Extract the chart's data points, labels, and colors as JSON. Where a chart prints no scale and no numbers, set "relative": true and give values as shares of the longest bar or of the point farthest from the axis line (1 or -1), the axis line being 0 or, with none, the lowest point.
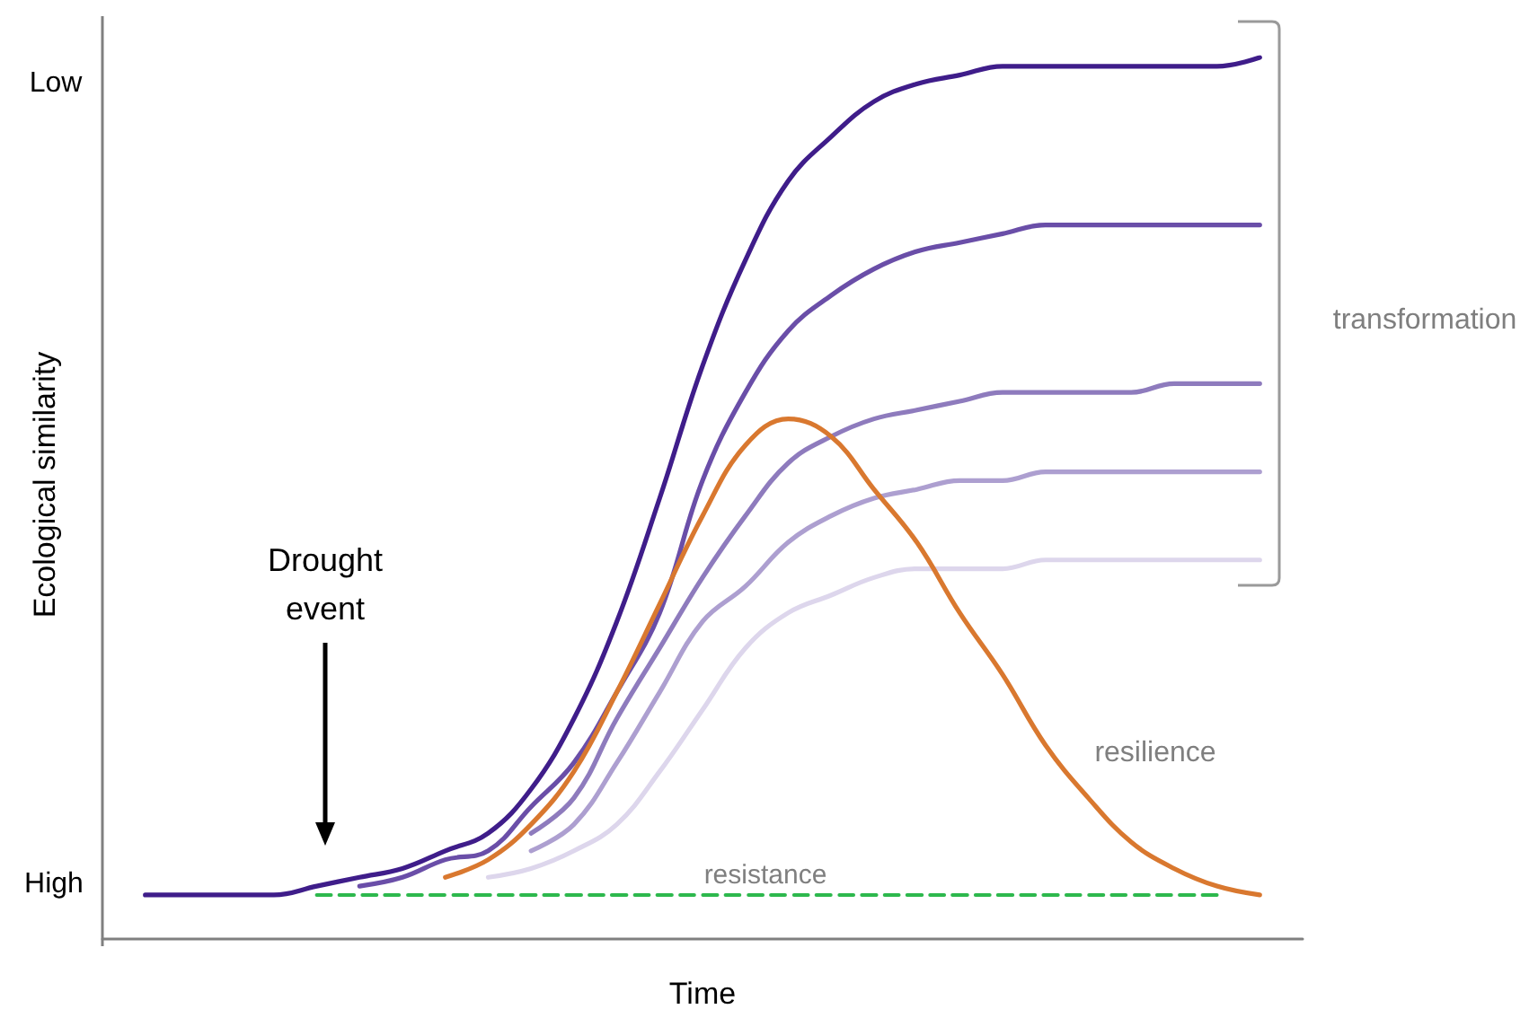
{
  "chart_data": {
    "type": "line",
    "xlabel": "Time",
    "ylabel": "Ecological similarity",
    "relative": true,
    "categories": [
      null,
      null,
      null,
      null,
      null,
      null,
      null,
      null,
      null,
      null,
      null,
      null,
      null,
      null,
      null,
      null,
      null,
      null,
      null,
      null,
      null,
      null,
      null,
      null,
      null,
      null,
      null,
      null,
      null
    ],
    "grid": false,
    "marker": "none",
    "series": [
      {
        "color": "#ddd6ec",
        "values": [
          null,
          null,
          null,
          null,
          null,
          null,
          null,
          null,
          null,
          0.07,
          0.08,
          0.1,
          0.13,
          0.19,
          0.26,
          0.33,
          0.37,
          0.39,
          0.41,
          0.42,
          0.42,
          0.42,
          0.43,
          0.43,
          0.43,
          0.43,
          0.43,
          0.43,
          null
        ]
      },
      {
        "color": "#ad9fd0",
        "values": [
          null,
          null,
          null,
          null,
          null,
          null,
          null,
          null,
          null,
          null,
          0.1,
          0.13,
          0.2,
          0.28,
          0.36,
          0.4,
          0.45,
          0.48,
          0.5,
          0.51,
          0.52,
          0.52,
          0.53,
          0.53,
          0.53,
          0.53,
          0.53,
          0.53,
          null
        ]
      },
      {
        "color": "#8e7bbd",
        "values": [
          null,
          null,
          null,
          null,
          null,
          null,
          null,
          null,
          null,
          null,
          0.12,
          0.16,
          0.25,
          0.33,
          0.41,
          0.48,
          0.54,
          0.57,
          0.59,
          0.6,
          0.61,
          0.62,
          0.62,
          0.62,
          0.62,
          0.63,
          0.63,
          0.63,
          null
        ]
      },
      {
        "color": "#6a4ea8",
        "values": [
          null,
          null,
          null,
          null,
          null,
          null,
          0.06,
          0.07,
          0.09,
          0.1,
          0.15,
          0.2,
          0.28,
          0.37,
          0.52,
          0.62,
          0.69,
          0.73,
          0.76,
          0.78,
          0.79,
          0.8,
          0.81,
          0.81,
          0.81,
          0.81,
          0.81,
          0.81,
          null
        ]
      },
      {
        "color": "#3f1d8a",
        "values": [
          null,
          0.05,
          0.05,
          0.05,
          0.05,
          0.06,
          0.07,
          0.08,
          0.1,
          0.12,
          0.17,
          0.25,
          0.36,
          0.5,
          0.65,
          0.77,
          0.86,
          0.91,
          0.95,
          0.97,
          0.98,
          0.99,
          0.99,
          0.99,
          0.99,
          0.99,
          0.99,
          1,
          null
        ]
      },
      {
        "color": "#2db84d",
        "line_style": "dashed",
        "values": [
          null,
          null,
          null,
          null,
          null,
          0.05,
          0.05,
          0.05,
          0.05,
          0.05,
          0.05,
          0.05,
          0.05,
          0.05,
          0.05,
          0.05,
          0.05,
          0.05,
          0.05,
          0.05,
          0.05,
          0.05,
          0.05,
          0.05,
          0.05,
          0.05,
          0.05,
          null,
          null
        ]
      },
      {
        "color": "#d9782f",
        "values": [
          null,
          null,
          null,
          null,
          null,
          null,
          null,
          null,
          0.07,
          0.09,
          0.13,
          0.19,
          0.28,
          0.38,
          0.48,
          0.56,
          0.59,
          0.57,
          0.51,
          0.45,
          0.37,
          0.3,
          0.22,
          0.16,
          0.11,
          0.08,
          0.06,
          0.05,
          null
        ]
      }
    ],
    "annotations": [
      "Low",
      "High",
      "Drought event",
      "resistance",
      "resilience",
      "transformation"
    ]
  }
}
